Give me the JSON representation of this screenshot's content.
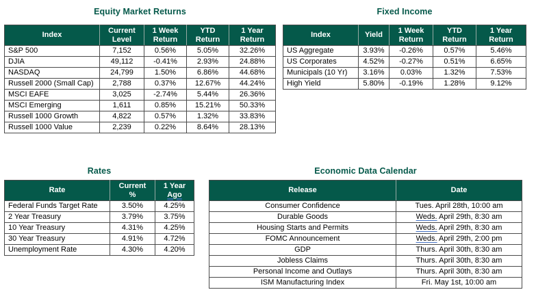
{
  "colors": {
    "accent_green": "#05594a",
    "grammar_underline_blue": "#4472c4"
  },
  "tables": {
    "equity": {
      "title": "Equity Market Returns",
      "headers": [
        "Index",
        "Current\nLevel",
        "1 Week\nReturn",
        "YTD\nReturn",
        "1 Year\nReturn"
      ],
      "rows": [
        [
          "S&P 500",
          "7,152",
          "0.56%",
          "5.05%",
          "32.26%"
        ],
        [
          "DJIA",
          "49,112",
          "-0.41%",
          "2.93%",
          "24.88%"
        ],
        [
          "NASDAQ",
          "24,799",
          "1.50%",
          "6.86%",
          "44.68%"
        ],
        [
          "Russell 2000 (Small Cap)",
          "2,788",
          "0.37%",
          "12.67%",
          "44.24%"
        ],
        [
          "MSCI EAFE",
          "3,025",
          "-2.74%",
          "5.44%",
          "26.36%"
        ],
        [
          "MSCI Emerging",
          "1,611",
          "0.85%",
          "15.21%",
          "50.33%"
        ],
        [
          "Russell 1000 Growth",
          "4,822",
          "0.57%",
          "1.32%",
          "33.83%"
        ],
        [
          "Russell 1000 Value",
          "2,239",
          "0.22%",
          "8.64%",
          "28.13%"
        ]
      ]
    },
    "fixed_income": {
      "title": "Fixed Income",
      "headers": [
        "Index",
        "Yield",
        "1 Week\nReturn",
        "YTD\nReturn",
        "1 Year\nReturn"
      ],
      "rows": [
        [
          "US Aggregate",
          "3.93%",
          "-0.26%",
          "0.57%",
          "5.46%"
        ],
        [
          "US Corporates",
          "4.52%",
          "-0.27%",
          "0.51%",
          "6.65%"
        ],
        [
          "Municipals (10 Yr)",
          "3.16%",
          "0.03%",
          "1.32%",
          "7.53%"
        ],
        [
          "High Yield",
          "5.80%",
          "-0.19%",
          "1.28%",
          "9.12%"
        ]
      ]
    },
    "rates": {
      "title": "Rates",
      "headers": [
        "Rate",
        "Current\n%",
        {
          "parts": [
            {
              "text": "1 Year\n"
            },
            {
              "text": "Ago",
              "underline": true
            }
          ]
        }
      ],
      "rows": [
        [
          "Federal Funds Target Rate",
          "3.50%",
          "4.25%"
        ],
        [
          "2 Year Treasury",
          "3.79%",
          "3.75%"
        ],
        [
          "10 Year Treasury",
          "4.31%",
          "4.25%"
        ],
        [
          "30 Year Treasury",
          "4.91%",
          "4.72%"
        ],
        [
          "Unemployment Rate",
          "4.30%",
          "4.20%"
        ]
      ]
    },
    "calendar": {
      "title": "Economic Data Calendar",
      "headers": [
        "Release",
        "Date"
      ],
      "rows": [
        [
          "Consumer Confidence",
          "Tues. April 28th, 10:00 am"
        ],
        [
          "Durable Goods",
          {
            "parts": [
              {
                "text": "Weds.",
                "underline": true
              },
              {
                "text": " April 29th, 8:30 am"
              }
            ]
          }
        ],
        [
          "Housing Starts and Permits",
          {
            "parts": [
              {
                "text": "Weds.",
                "underline": true
              },
              {
                "text": " April 29th, 8:30 am"
              }
            ]
          }
        ],
        [
          "FOMC Announcement",
          {
            "parts": [
              {
                "text": "Weds.",
                "underline": true
              },
              {
                "text": " April 29th, 2:00 pm"
              }
            ]
          }
        ],
        [
          "GDP",
          "Thurs. April 30th, 8:30 am"
        ],
        [
          "Jobless Claims",
          "Thurs. April 30th, 8:30 am"
        ],
        [
          "Personal Income and Outlays",
          "Thurs. April 30th, 8:30 am"
        ],
        [
          "ISM Manufacturing Index",
          "Fri. May 1st, 10:00 am"
        ]
      ]
    }
  }
}
